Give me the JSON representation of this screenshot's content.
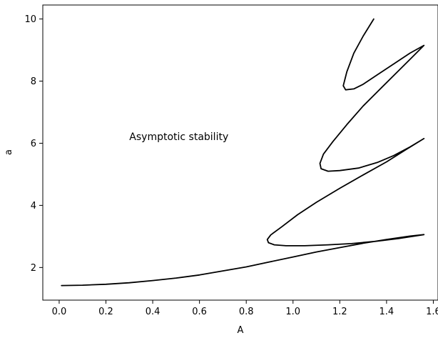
{
  "chart_data": {
    "type": "line",
    "title": "",
    "xlabel": "A",
    "ylabel": "a",
    "xlim": [
      -0.07,
      1.62
    ],
    "ylim": [
      0.95,
      10.45
    ],
    "xticks": [
      0.0,
      0.2,
      0.4,
      0.6,
      0.8,
      1.0,
      1.2,
      1.4,
      1.6
    ],
    "xtick_labels": [
      "0.0",
      "0.2",
      "0.4",
      "0.6",
      "0.8",
      "1.0",
      "1.2",
      "1.4",
      "1.6"
    ],
    "yticks": [
      2,
      4,
      6,
      8,
      10
    ],
    "ytick_labels": [
      "2",
      "4",
      "6",
      "8",
      "10"
    ],
    "grid": false,
    "annotations": [
      {
        "text": "Asymptotic stability",
        "x": 0.3,
        "y": 6.1
      }
    ],
    "series": [
      {
        "color": "#000000",
        "points": [
          [
            0.01,
            1.42
          ],
          [
            0.1,
            1.43
          ],
          [
            0.2,
            1.46
          ],
          [
            0.3,
            1.51
          ],
          [
            0.4,
            1.58
          ],
          [
            0.5,
            1.66
          ],
          [
            0.6,
            1.76
          ],
          [
            0.7,
            1.89
          ],
          [
            0.8,
            2.02
          ],
          [
            0.9,
            2.18
          ],
          [
            1.0,
            2.34
          ],
          [
            1.1,
            2.5
          ],
          [
            1.2,
            2.64
          ],
          [
            1.3,
            2.78
          ],
          [
            1.4,
            2.9
          ],
          [
            1.5,
            3.01
          ],
          [
            1.56,
            3.06
          ],
          [
            1.45,
            2.93
          ],
          [
            1.35,
            2.84
          ],
          [
            1.25,
            2.77
          ],
          [
            1.15,
            2.73
          ],
          [
            1.05,
            2.7
          ],
          [
            0.97,
            2.7
          ],
          [
            0.92,
            2.73
          ],
          [
            0.895,
            2.8
          ],
          [
            0.89,
            2.9
          ],
          [
            0.905,
            3.05
          ],
          [
            0.95,
            3.3
          ],
          [
            1.02,
            3.7
          ],
          [
            1.1,
            4.1
          ],
          [
            1.2,
            4.55
          ],
          [
            1.3,
            4.98
          ],
          [
            1.4,
            5.4
          ],
          [
            1.48,
            5.78
          ],
          [
            1.56,
            6.15
          ],
          [
            1.5,
            5.88
          ],
          [
            1.43,
            5.6
          ],
          [
            1.36,
            5.38
          ],
          [
            1.28,
            5.2
          ],
          [
            1.2,
            5.12
          ],
          [
            1.15,
            5.1
          ],
          [
            1.12,
            5.18
          ],
          [
            1.115,
            5.35
          ],
          [
            1.13,
            5.65
          ],
          [
            1.17,
            6.05
          ],
          [
            1.23,
            6.6
          ],
          [
            1.3,
            7.2
          ],
          [
            1.38,
            7.8
          ],
          [
            1.46,
            8.4
          ],
          [
            1.52,
            8.85
          ],
          [
            1.56,
            9.15
          ],
          [
            1.5,
            8.9
          ],
          [
            1.43,
            8.55
          ],
          [
            1.36,
            8.2
          ],
          [
            1.3,
            7.9
          ],
          [
            1.26,
            7.75
          ],
          [
            1.225,
            7.72
          ],
          [
            1.215,
            7.85
          ],
          [
            1.23,
            8.3
          ],
          [
            1.26,
            8.9
          ],
          [
            1.3,
            9.45
          ],
          [
            1.345,
            10.0
          ]
        ]
      }
    ]
  }
}
